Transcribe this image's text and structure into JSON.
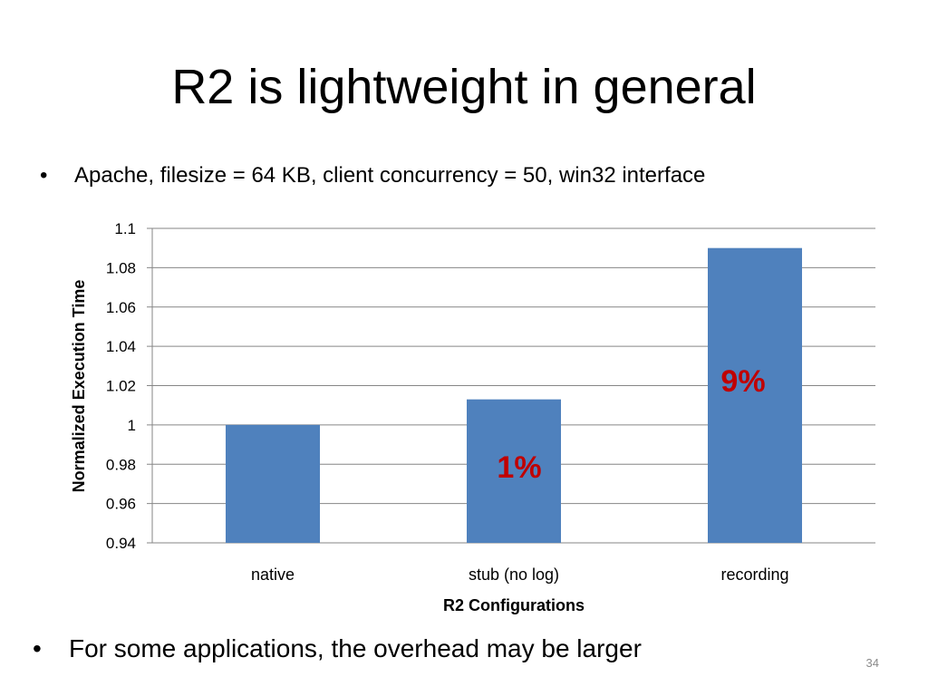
{
  "slide": {
    "title": "R2 is lightweight in general",
    "bullets": [
      "Apache, filesize = 64 KB, client concurrency = 50, win32 interface",
      "For some applications, the overhead may be larger"
    ],
    "bullet_symbol": "•",
    "page_number": "34"
  },
  "chart_data": {
    "type": "bar",
    "categories": [
      "native",
      "stub (no log)",
      "recording"
    ],
    "values": [
      1.0,
      1.013,
      1.09
    ],
    "xlabel": "R2 Configurations",
    "ylabel": "Normalized Execution Time",
    "ylim": [
      0.94,
      1.1
    ],
    "yticks": [
      "0.94",
      "0.96",
      "0.98",
      "1",
      "1.02",
      "1.04",
      "1.06",
      "1.08",
      "1.1"
    ],
    "grid": true,
    "legend": "none",
    "bar_color": "#4f81bd",
    "annotations": [
      {
        "text": "1%",
        "category": "stub (no log)",
        "color": "#c00000"
      },
      {
        "text": "9%",
        "category": "recording",
        "color": "#c00000"
      }
    ]
  }
}
